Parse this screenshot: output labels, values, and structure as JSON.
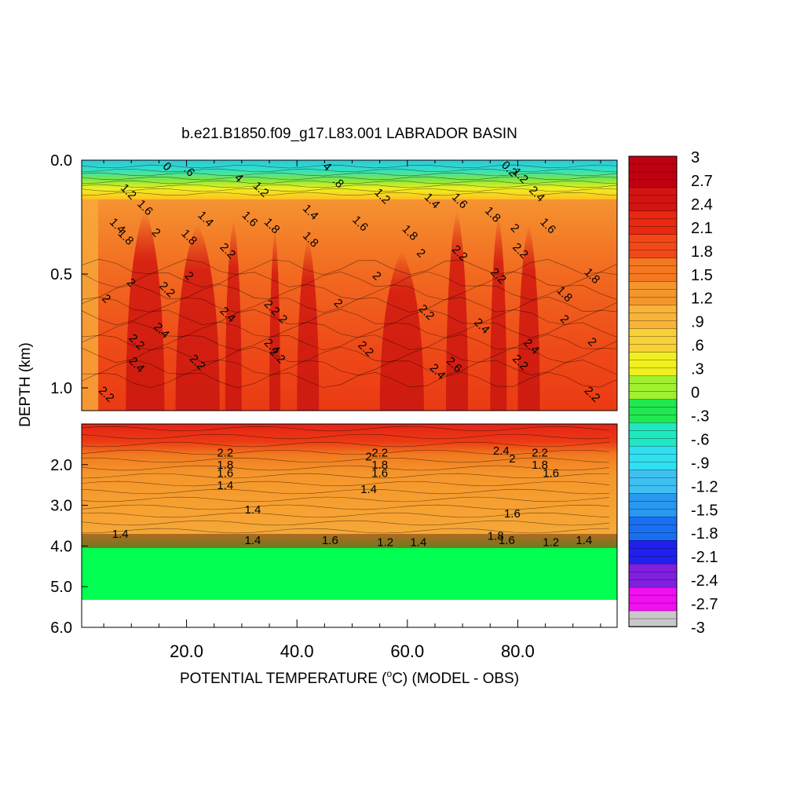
{
  "chart_data": {
    "type": "heatmap",
    "title": "b.e21.B1850.f09_g17.L83.001 LABRADOR BASIN",
    "xlabel": "POTENTIAL TEMPERATURE (oC) (MODEL - OBS)",
    "xlabel_parts": {
      "before": "POTENTIAL TEMPERATURE (",
      "superscript": "o",
      "after": "C) (MODEL - OBS)"
    },
    "ylabel": "DEPTH (km)",
    "x_ticks": [
      "20.0",
      "40.0",
      "60.0",
      "80.0"
    ],
    "x_tick_values": [
      20,
      40,
      60,
      80
    ],
    "xlim": [
      1,
      98
    ],
    "y_ticks_upper": [
      "0.0",
      "0.5",
      "1.0"
    ],
    "y_tick_values_upper": [
      0.0,
      0.5,
      1.0
    ],
    "ylim_upper": [
      0.0,
      1.1
    ],
    "y_ticks_lower": [
      "2.0",
      "3.0",
      "4.0",
      "5.0",
      "6.0"
    ],
    "y_tick_values_lower": [
      2.0,
      3.0,
      4.0,
      5.0,
      6.0
    ],
    "ylim_lower": [
      1.0,
      6.0
    ],
    "colorbar": {
      "labels": [
        "3",
        "2.7",
        "2.4",
        "2.1",
        "1.8",
        "1.5",
        "1.2",
        ".9",
        ".6",
        ".3",
        "0",
        "-.3",
        "-.6",
        "-.9",
        "-1.2",
        "-1.5",
        "-1.8",
        "-2.1",
        "-2.4",
        "-2.7",
        "-3"
      ],
      "values": [
        3,
        2.7,
        2.4,
        2.1,
        1.8,
        1.5,
        1.2,
        0.9,
        0.6,
        0.3,
        0,
        -0.3,
        -0.6,
        -0.9,
        -1.2,
        -1.5,
        -1.8,
        -2.1,
        -2.4,
        -2.7,
        -3
      ]
    },
    "upper_contour_labels": [
      {
        "x": 5,
        "depth": 0.62,
        "text": "2"
      },
      {
        "x": 5,
        "depth": 1.04,
        "text": "2.2"
      },
      {
        "x": 8.5,
        "depth": 0.35,
        "text": "1.8"
      },
      {
        "x": 7,
        "depth": 0.3,
        "text": "1.4"
      },
      {
        "x": 9,
        "depth": 0.15,
        "text": "1.2"
      },
      {
        "x": 9.5,
        "depth": 0.55,
        "text": "2"
      },
      {
        "x": 12,
        "depth": 0.22,
        "text": "1.6"
      },
      {
        "x": 14,
        "depth": 0.33,
        "text": "2"
      },
      {
        "x": 16,
        "depth": 0.58,
        "text": "2.2"
      },
      {
        "x": 15,
        "depth": 0.76,
        "text": "2.4"
      },
      {
        "x": 10.5,
        "depth": 0.91,
        "text": "2.4"
      },
      {
        "x": 10.5,
        "depth": 0.81,
        "text": "2.2"
      },
      {
        "x": 20,
        "depth": 0.06,
        "text": ".6"
      },
      {
        "x": 23,
        "depth": 0.27,
        "text": "1.4"
      },
      {
        "x": 20,
        "depth": 0.35,
        "text": "1.8"
      },
      {
        "x": 20,
        "depth": 0.52,
        "text": "2"
      },
      {
        "x": 21.5,
        "depth": 0.9,
        "text": "2.2"
      },
      {
        "x": 27,
        "depth": 0.41,
        "text": "2.2"
      },
      {
        "x": 27,
        "depth": 0.69,
        "text": "2.4"
      },
      {
        "x": 33,
        "depth": 0.14,
        "text": "1.2"
      },
      {
        "x": 31,
        "depth": 0.27,
        "text": "1.6"
      },
      {
        "x": 35,
        "depth": 0.3,
        "text": "1.8"
      },
      {
        "x": 35,
        "depth": 0.66,
        "text": "2.2"
      },
      {
        "x": 37,
        "depth": 0.71,
        "text": "2"
      },
      {
        "x": 35,
        "depth": 0.83,
        "text": "2.4"
      },
      {
        "x": 36,
        "depth": 0.87,
        "text": "2.2"
      },
      {
        "x": 42,
        "depth": 0.24,
        "text": "1.4"
      },
      {
        "x": 42,
        "depth": 0.36,
        "text": "1.8"
      },
      {
        "x": 47,
        "depth": 0.64,
        "text": "2"
      },
      {
        "x": 47,
        "depth": 0.11,
        "text": ".8"
      },
      {
        "x": 51,
        "depth": 0.29,
        "text": "1.6"
      },
      {
        "x": 54,
        "depth": 0.52,
        "text": "2"
      },
      {
        "x": 55,
        "depth": 0.17,
        "text": "1.2"
      },
      {
        "x": 52,
        "depth": 0.84,
        "text": "2.2"
      },
      {
        "x": 60,
        "depth": 0.33,
        "text": "1.8"
      },
      {
        "x": 62,
        "depth": 0.42,
        "text": "2"
      },
      {
        "x": 63,
        "depth": 0.68,
        "text": "2.2"
      },
      {
        "x": 64,
        "depth": 0.19,
        "text": "1.4"
      },
      {
        "x": 65,
        "depth": 0.94,
        "text": "2.4"
      },
      {
        "x": 69,
        "depth": 0.19,
        "text": "1.6"
      },
      {
        "x": 69,
        "depth": 0.42,
        "text": "2.2"
      },
      {
        "x": 68,
        "depth": 0.91,
        "text": "2.6"
      },
      {
        "x": 75,
        "depth": 0.25,
        "text": "1.8"
      },
      {
        "x": 76,
        "depth": 0.52,
        "text": "2.2"
      },
      {
        "x": 73,
        "depth": 0.74,
        "text": "2.4"
      },
      {
        "x": 79,
        "depth": 0.31,
        "text": "2"
      },
      {
        "x": 80,
        "depth": 0.41,
        "text": "2.2"
      },
      {
        "x": 82,
        "depth": 0.83,
        "text": "2.4"
      },
      {
        "x": 80,
        "depth": 0.9,
        "text": "2.2"
      },
      {
        "x": 85,
        "depth": 0.3,
        "text": "1.6"
      },
      {
        "x": 88,
        "depth": 0.6,
        "text": "1.8"
      },
      {
        "x": 88,
        "depth": 0.71,
        "text": "2"
      },
      {
        "x": 93,
        "depth": 0.52,
        "text": "1.8"
      },
      {
        "x": 93,
        "depth": 0.81,
        "text": "2"
      },
      {
        "x": 93,
        "depth": 1.04,
        "text": "2.2"
      },
      {
        "x": 29,
        "depth": 0.09,
        "text": "4"
      },
      {
        "x": 16,
        "depth": 0.04,
        "text": "0"
      },
      {
        "x": 45,
        "depth": 0.04,
        "text": "4"
      },
      {
        "x": 80,
        "depth": 0.08,
        "text": "1.2"
      },
      {
        "x": 83,
        "depth": 0.16,
        "text": "2.4"
      },
      {
        "x": 78,
        "depth": 0.05,
        "text": "0.2"
      }
    ],
    "lower_contour_labels": [
      {
        "x": 27,
        "depth": 1.8,
        "text": "2.2"
      },
      {
        "x": 27,
        "depth": 2.1,
        "text": "1.8"
      },
      {
        "x": 27,
        "depth": 2.3,
        "text": "1.6"
      },
      {
        "x": 27,
        "depth": 2.6,
        "text": "1.4"
      },
      {
        "x": 32,
        "depth": 3.2,
        "text": "1.4"
      },
      {
        "x": 8,
        "depth": 3.8,
        "text": "1.4"
      },
      {
        "x": 32,
        "depth": 3.95,
        "text": "1.4"
      },
      {
        "x": 46,
        "depth": 3.95,
        "text": "1.6"
      },
      {
        "x": 55,
        "depth": 1.8,
        "text": "2.2"
      },
      {
        "x": 53,
        "depth": 1.9,
        "text": "2"
      },
      {
        "x": 55,
        "depth": 2.1,
        "text": "1.8"
      },
      {
        "x": 55,
        "depth": 2.3,
        "text": "1.6"
      },
      {
        "x": 53,
        "depth": 2.7,
        "text": "1.4"
      },
      {
        "x": 56,
        "depth": 4.0,
        "text": "1.2"
      },
      {
        "x": 62,
        "depth": 4.0,
        "text": "1.4"
      },
      {
        "x": 77,
        "depth": 1.75,
        "text": "2.4"
      },
      {
        "x": 79,
        "depth": 1.95,
        "text": "2"
      },
      {
        "x": 84,
        "depth": 1.8,
        "text": "2.2"
      },
      {
        "x": 84,
        "depth": 2.1,
        "text": "1.8"
      },
      {
        "x": 86,
        "depth": 2.3,
        "text": "1.6"
      },
      {
        "x": 79,
        "depth": 3.3,
        "text": "1.6"
      },
      {
        "x": 76,
        "depth": 3.85,
        "text": "1.8"
      },
      {
        "x": 78,
        "depth": 3.95,
        "text": "1.6"
      },
      {
        "x": 86,
        "depth": 4.0,
        "text": "1.2"
      },
      {
        "x": 92,
        "depth": 3.95,
        "text": "1.4"
      }
    ],
    "field_description": "Warm bias (1.2 to 2.6) below a cold/near-zero surface layer; lower panel banded ~2.2 at 1.4 km decreasing to ~1.4 at 3.8 km; bottom layer ~0.2 from 4.1 to 5.3 km; no data below 5.3 km."
  }
}
